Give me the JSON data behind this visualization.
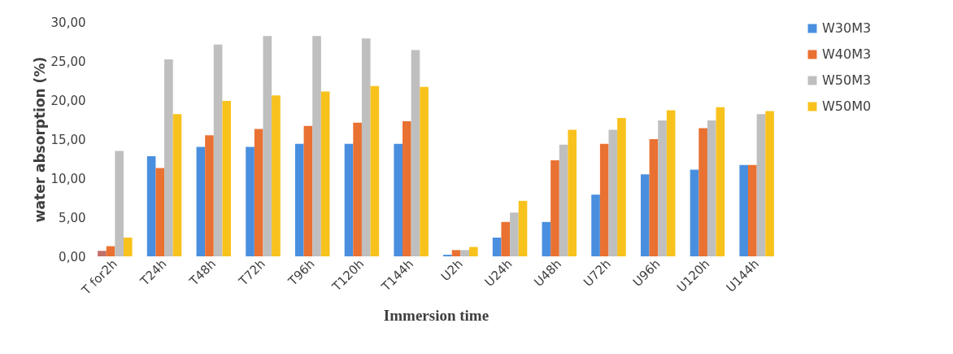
{
  "chart_data": {
    "type": "bar",
    "xlabel": "Immersion time",
    "ylabel": "water absorption (%)",
    "categories": [
      "T for2h",
      "T24h",
      "T48h",
      "T72h",
      "T96h",
      "T120h",
      "T144h",
      "U2h",
      "U24h",
      "U48h",
      "U72h",
      "U96h",
      "U120h",
      "U144h"
    ],
    "series": [
      {
        "name": "W30M3",
        "color": "#4a8fdf",
        "colors": [
          "#c0706a",
          "#4a8fdf",
          "#4a8fdf",
          "#4a8fdf",
          "#4a8fdf",
          "#4a8fdf",
          "#4a8fdf",
          "#4a8fdf",
          "#4a8fdf",
          "#4a8fdf",
          "#4a8fdf",
          "#4a8fdf",
          "#4a8fdf",
          "#4a8fdf"
        ],
        "values": [
          0.7,
          12.8,
          14.0,
          14.0,
          14.4,
          14.4,
          14.4,
          0.2,
          2.4,
          4.4,
          7.9,
          10.5,
          11.1,
          11.7
        ]
      },
      {
        "name": "W40M3",
        "color": "#e97132",
        "values": [
          1.3,
          11.3,
          15.5,
          16.3,
          16.7,
          17.1,
          17.3,
          0.8,
          4.4,
          12.3,
          14.4,
          15.0,
          16.4,
          11.7
        ]
      },
      {
        "name": "W50M3",
        "color": "#bfbfbf",
        "values": [
          13.5,
          25.2,
          27.1,
          28.2,
          28.2,
          27.9,
          26.4,
          0.8,
          5.6,
          14.3,
          16.2,
          17.4,
          17.4,
          18.2
        ]
      },
      {
        "name": "W50M0",
        "color": "#f8c21d",
        "values": [
          2.4,
          18.2,
          19.9,
          20.6,
          21.1,
          21.8,
          21.7,
          1.2,
          7.1,
          16.2,
          17.7,
          18.7,
          19.1,
          18.6
        ]
      }
    ],
    "ylim": [
      0,
      30
    ],
    "yticks": [
      {
        "value": 0,
        "label": "0,00"
      },
      {
        "value": 5,
        "label": "5,00"
      },
      {
        "value": 10,
        "label": "10,00"
      },
      {
        "value": 15,
        "label": "15,00"
      },
      {
        "value": 20,
        "label": "20,00"
      },
      {
        "value": 25,
        "label": "25,00"
      },
      {
        "value": 30,
        "label": "30,00"
      }
    ],
    "grid": false,
    "legend": "right"
  }
}
